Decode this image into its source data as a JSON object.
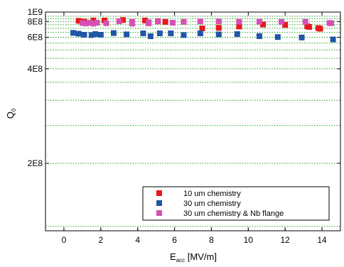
{
  "chart_data": {
    "type": "scatter",
    "xlabel": {
      "main": "E",
      "sub": "acc",
      "rest": " [MV/m]"
    },
    "ylabel": {
      "main": "Q",
      "sub": "0"
    },
    "xlim": [
      -1,
      15
    ],
    "ylim": [
      100000000,
      1000000000
    ],
    "y_scale": "reciprocal",
    "x_ticks": [
      0,
      2,
      4,
      6,
      8,
      10,
      12,
      14
    ],
    "x_tick_labels": [
      "0",
      "2",
      "4",
      "6",
      "8",
      "10",
      "12",
      "14"
    ],
    "y_ticks": [
      1000000000,
      800000000,
      600000000,
      400000000,
      200000000
    ],
    "y_tick_labels": [
      "1E9",
      "8E8",
      "6E8",
      "4E8",
      "2E8"
    ],
    "gridlines_y": [
      900000000,
      850000000,
      800000000,
      750000000,
      700000000,
      650000000,
      600000000,
      550000000,
      500000000,
      450000000,
      400000000,
      350000000,
      300000000,
      250000000,
      200000000,
      150000000,
      125000000
    ],
    "grid": "horizontal dotted green",
    "legend_position": "bottom-right",
    "colors": {
      "red": "#e8171c",
      "blue": "#2155a8",
      "magenta": "#d650b4",
      "grid": "#20a020"
    },
    "series": [
      {
        "name": "10 um chemistry",
        "color": "#e8171c",
        "points": [
          [
            0.8,
            812000000
          ],
          [
            1.1,
            800000000
          ],
          [
            1.6,
            818000000
          ],
          [
            2.2,
            818000000
          ],
          [
            3.2,
            826000000
          ],
          [
            4.4,
            818000000
          ],
          [
            5.1,
            806000000
          ],
          [
            5.5,
            794000000
          ],
          [
            7.5,
            698000000
          ],
          [
            8.4,
            706000000
          ],
          [
            9.5,
            723000000
          ],
          [
            10.8,
            752000000
          ],
          [
            12.0,
            747000000
          ],
          [
            13.2,
            727000000
          ],
          [
            13.3,
            718000000
          ],
          [
            13.8,
            702000000
          ],
          [
            13.9,
            694000000
          ]
        ]
      },
      {
        "name": "30 um chemistry",
        "color": "#2155a8",
        "points": [
          [
            0.5,
            645000000
          ],
          [
            0.8,
            636000000
          ],
          [
            1.1,
            625000000
          ],
          [
            1.5,
            622000000
          ],
          [
            1.7,
            632000000
          ],
          [
            2.0,
            625000000
          ],
          [
            2.7,
            643000000
          ],
          [
            3.4,
            629000000
          ],
          [
            4.3,
            640000000
          ],
          [
            4.7,
            610000000
          ],
          [
            5.2,
            640000000
          ],
          [
            5.8,
            640000000
          ],
          [
            6.5,
            622000000
          ],
          [
            7.4,
            640000000
          ],
          [
            8.4,
            629000000
          ],
          [
            9.4,
            632000000
          ],
          [
            10.6,
            611000000
          ],
          [
            11.6,
            602000000
          ],
          [
            12.9,
            598000000
          ],
          [
            14.6,
            580000000
          ]
        ]
      },
      {
        "name": "30 um chemistry & Nb flange",
        "color": "#d650b4",
        "points": [
          [
            1.0,
            775000000
          ],
          [
            1.2,
            768000000
          ],
          [
            1.4,
            780000000
          ],
          [
            1.6,
            766000000
          ],
          [
            1.8,
            780000000
          ],
          [
            2.3,
            772000000
          ],
          [
            3.0,
            804000000
          ],
          [
            3.7,
            795000000
          ],
          [
            3.7,
            766000000
          ],
          [
            4.6,
            788000000
          ],
          [
            4.6,
            770000000
          ],
          [
            5.1,
            800000000
          ],
          [
            5.9,
            780000000
          ],
          [
            6.5,
            795000000
          ],
          [
            7.4,
            802000000
          ],
          [
            8.4,
            802000000
          ],
          [
            9.5,
            797000000
          ],
          [
            10.6,
            797000000
          ],
          [
            11.8,
            795000000
          ],
          [
            13.1,
            795000000
          ],
          [
            14.4,
            776000000
          ],
          [
            14.5,
            772000000
          ]
        ]
      }
    ]
  }
}
